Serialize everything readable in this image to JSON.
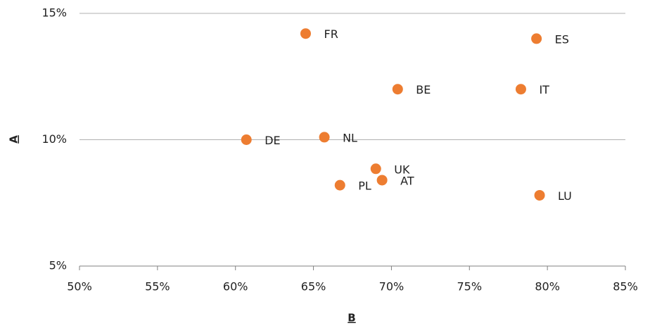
{
  "chart_data": {
    "type": "scatter",
    "x_label": "B",
    "y_label": "A",
    "series": [
      {
        "color": "#ed7d31",
        "labels": [
          "FR",
          "ES",
          "BE",
          "IT",
          "DE",
          "NL",
          "UK",
          "AT",
          "PL",
          "LU"
        ],
        "x": [
          64.5,
          79.3,
          70.4,
          78.3,
          60.7,
          65.7,
          69.0,
          69.4,
          66.7,
          79.5
        ],
        "values": [
          14.2,
          14.0,
          12.0,
          12.0,
          10.0,
          10.1,
          8.85,
          8.4,
          8.2,
          7.8
        ]
      }
    ],
    "xlim": [
      50,
      85
    ],
    "xticks": [
      {
        "value": 50,
        "label": "50%"
      },
      {
        "value": 55,
        "label": "55%"
      },
      {
        "value": 60,
        "label": "60%"
      },
      {
        "value": 65,
        "label": "65%"
      },
      {
        "value": 70,
        "label": "70%"
      },
      {
        "value": 75,
        "label": "75%"
      },
      {
        "value": 80,
        "label": "80%"
      },
      {
        "value": 85,
        "label": "85%"
      }
    ],
    "ylim": [
      5,
      15
    ],
    "yticks": [
      {
        "value": 5,
        "label": "5%"
      },
      {
        "value": 10,
        "label": "10%"
      },
      {
        "value": 15,
        "label": "15%"
      }
    ],
    "grid": true
  }
}
